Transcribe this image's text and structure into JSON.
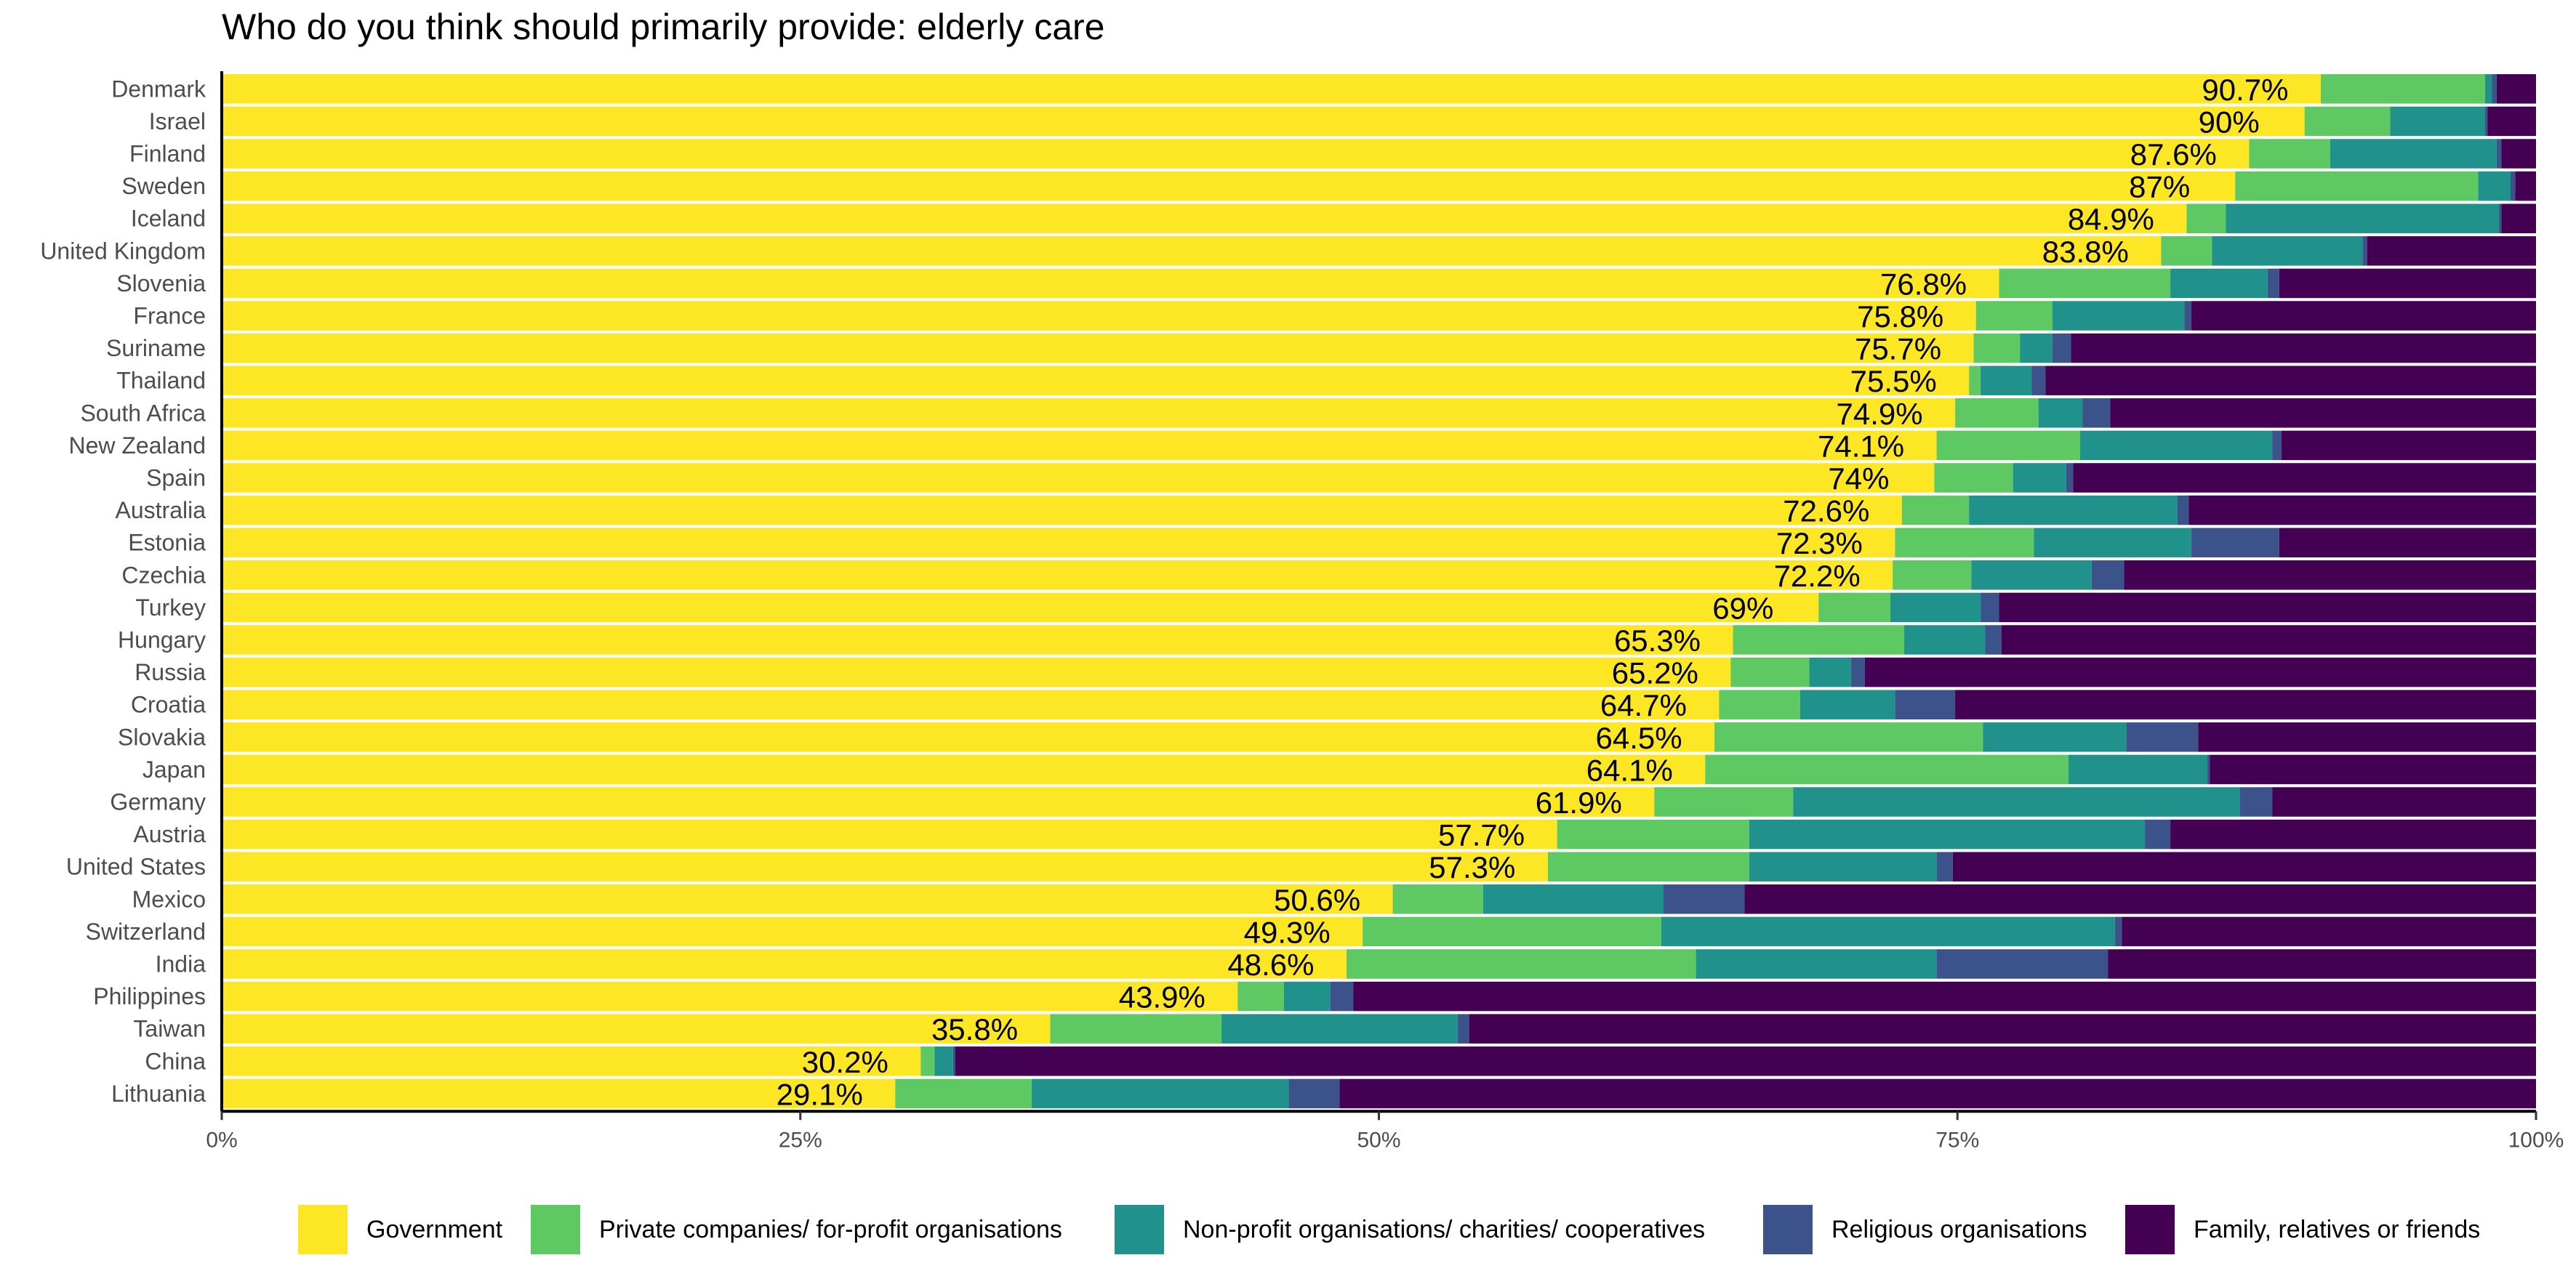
{
  "chart_data": {
    "type": "bar",
    "orientation": "horizontal",
    "stacked": true,
    "title": "Who do you think should primarily provide: elderly care",
    "xlabel": "",
    "ylabel": "",
    "xlim": [
      0,
      100
    ],
    "x_ticks": [
      "0%",
      "25%",
      "50%",
      "75%",
      "100%"
    ],
    "grid": false,
    "legend_position": "bottom",
    "categories": [
      "Denmark",
      "Israel",
      "Finland",
      "Sweden",
      "Iceland",
      "United Kingdom",
      "Slovenia",
      "France",
      "Suriname",
      "Thailand",
      "South Africa",
      "New Zealand",
      "Spain",
      "Australia",
      "Estonia",
      "Czechia",
      "Turkey",
      "Hungary",
      "Russia",
      "Croatia",
      "Slovakia",
      "Japan",
      "Germany",
      "Austria",
      "United States",
      "Mexico",
      "Switzerland",
      "India",
      "Philippines",
      "Taiwan",
      "China",
      "Lithuania"
    ],
    "series": [
      {
        "name": "Government",
        "color": "#FDE725",
        "values": [
          90.7,
          90,
          87.6,
          87,
          84.9,
          83.8,
          76.8,
          75.8,
          75.7,
          75.5,
          74.9,
          74.1,
          74,
          72.6,
          72.3,
          72.2,
          69,
          65.3,
          65.2,
          64.7,
          64.5,
          64.1,
          61.9,
          57.7,
          57.3,
          50.6,
          49.3,
          48.6,
          43.9,
          35.8,
          30.2,
          29.1
        ]
      },
      {
        "name": "Private companies/ for-profit organisations",
        "color": "#5EC962",
        "values": [
          7.1,
          3.7,
          3.5,
          10.5,
          1.7,
          2.2,
          7.4,
          3.3,
          2.0,
          0.5,
          3.6,
          6.2,
          3.4,
          2.9,
          6.0,
          3.4,
          3.1,
          7.4,
          3.4,
          3.5,
          11.6,
          15.7,
          6.0,
          8.3,
          8.7,
          3.9,
          12.9,
          15.1,
          2.0,
          7.4,
          0.6,
          5.9
        ]
      },
      {
        "name": "Non-profit organisations/ charities/ cooperatives",
        "color": "#21918C",
        "values": [
          0.3,
          4.1,
          7.2,
          1.4,
          11.8,
          6.5,
          4.2,
          5.7,
          1.4,
          2.2,
          1.9,
          8.3,
          2.3,
          9.0,
          6.8,
          5.2,
          3.9,
          3.5,
          1.8,
          4.1,
          6.2,
          6.0,
          19.3,
          17.1,
          8.1,
          7.8,
          19.6,
          10.4,
          2.0,
          10.2,
          0.8,
          11.1
        ]
      },
      {
        "name": "Religious organisations",
        "color": "#3B528B",
        "values": [
          0.2,
          0.1,
          0.2,
          0.2,
          0.1,
          0.2,
          0.5,
          0.3,
          0.8,
          0.6,
          1.2,
          0.4,
          0.3,
          0.5,
          3.8,
          1.4,
          0.8,
          0.7,
          0.6,
          2.6,
          3.1,
          0.1,
          1.4,
          1.1,
          0.7,
          3.5,
          0.3,
          7.4,
          1.0,
          0.5,
          0.1,
          2.2
        ]
      },
      {
        "name": "Family, relatives or friends",
        "color": "#440154",
        "values": [
          1.7,
          2.1,
          1.5,
          0.9,
          1.5,
          7.3,
          11.1,
          14.9,
          20.1,
          21.2,
          18.4,
          11.0,
          20.0,
          15.0,
          11.1,
          17.8,
          23.2,
          23.1,
          29.0,
          25.1,
          14.6,
          14.1,
          11.4,
          15.8,
          25.2,
          34.2,
          17.9,
          18.5,
          51.1,
          46.1,
          68.3,
          51.7
        ]
      }
    ],
    "data_labels": [
      "90.7%",
      "90%",
      "87.6%",
      "87%",
      "84.9%",
      "83.8%",
      "76.8%",
      "75.8%",
      "75.7%",
      "75.5%",
      "74.9%",
      "74.1%",
      "74%",
      "72.6%",
      "72.3%",
      "72.2%",
      "69%",
      "65.3%",
      "65.2%",
      "64.7%",
      "64.5%",
      "64.1%",
      "61.9%",
      "57.7%",
      "57.3%",
      "50.6%",
      "49.3%",
      "48.6%",
      "43.9%",
      "35.8%",
      "30.2%",
      "29.1%"
    ]
  }
}
